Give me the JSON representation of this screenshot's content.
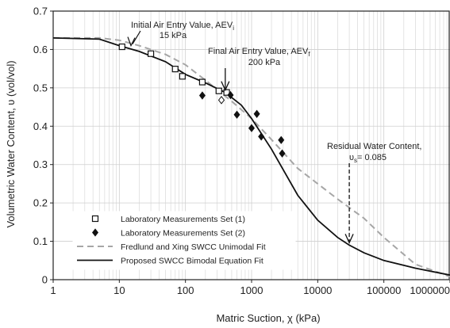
{
  "chart_data": {
    "type": "scatter",
    "xscale": "log",
    "xlim": [
      1,
      1000000
    ],
    "ylim": [
      0,
      0.7
    ],
    "grid": true,
    "xlabel": "Matric Suction, χ  (kPa)",
    "ylabel": "Volumetric Water Content, υ (vol/vol)",
    "x_tick_labels": [
      "1",
      "10",
      "100",
      "1000",
      "10000",
      "100000",
      "1000000"
    ],
    "y_tick_labels": [
      "0",
      "0.1",
      "0.2",
      "0.3",
      "0.4",
      "0.5",
      "0.6",
      "0.7"
    ],
    "legend_position": "bottom-left",
    "series": [
      {
        "name": "Laboratory Measurements Set (1)",
        "kind": "markers",
        "marker": "open-square",
        "points": [
          [
            11,
            0.607
          ],
          [
            30,
            0.589
          ],
          [
            70,
            0.549
          ],
          [
            90,
            0.53
          ],
          [
            180,
            0.515
          ],
          [
            320,
            0.492
          ],
          [
            420,
            0.488
          ]
        ]
      },
      {
        "name": "Laboratory Measurements Set (2)",
        "kind": "markers",
        "marker": "filled-diamond",
        "points": [
          [
            180,
            0.48
          ],
          [
            480,
            0.481
          ],
          [
            600,
            0.43
          ],
          [
            1000,
            0.395
          ],
          [
            1200,
            0.432
          ],
          [
            1400,
            0.373
          ],
          [
            2800,
            0.364
          ],
          [
            2900,
            0.329
          ]
        ]
      },
      {
        "name": "",
        "kind": "markers",
        "marker": "open-diamond",
        "points": [
          [
            350,
            0.468
          ]
        ]
      },
      {
        "name": "Fredlund and Xing SWCC Unimodal Fit",
        "kind": "line",
        "style": "dashed",
        "color": "#a6a6a6",
        "points": [
          [
            1,
            0.63
          ],
          [
            5,
            0.63
          ],
          [
            10,
            0.624
          ],
          [
            20,
            0.61
          ],
          [
            50,
            0.587
          ],
          [
            100,
            0.56
          ],
          [
            200,
            0.52
          ],
          [
            500,
            0.465
          ],
          [
            1000,
            0.42
          ],
          [
            2000,
            0.365
          ],
          [
            5000,
            0.29
          ],
          [
            10000,
            0.25
          ],
          [
            20000,
            0.21
          ],
          [
            50000,
            0.16
          ],
          [
            100000,
            0.11
          ],
          [
            300000,
            0.04
          ],
          [
            1000000,
            0.008
          ]
        ]
      },
      {
        "name": "Proposed SWCC Bimodal Equation Fit",
        "kind": "line",
        "style": "solid",
        "color": "#111111",
        "points": [
          [
            1,
            0.63
          ],
          [
            5,
            0.627
          ],
          [
            10,
            0.61
          ],
          [
            20,
            0.595
          ],
          [
            50,
            0.568
          ],
          [
            100,
            0.535
          ],
          [
            200,
            0.513
          ],
          [
            400,
            0.488
          ],
          [
            700,
            0.455
          ],
          [
            1000,
            0.42
          ],
          [
            2000,
            0.34
          ],
          [
            5000,
            0.22
          ],
          [
            10000,
            0.155
          ],
          [
            20000,
            0.11
          ],
          [
            30000,
            0.09
          ],
          [
            50000,
            0.07
          ],
          [
            100000,
            0.05
          ],
          [
            300000,
            0.03
          ],
          [
            1000000,
            0.012
          ]
        ]
      }
    ],
    "annotations": [
      {
        "lines": [
          "Initial Air Entry Value, AEV",
          "15 kPa"
        ],
        "subscript": "i",
        "arrow_x": 15,
        "arrow_y": 0.61
      },
      {
        "lines": [
          "Final Air Entry Value, AEV",
          "200 kPa"
        ],
        "subscript": "f",
        "arrow_x": 400,
        "arrow_y": 0.49
      },
      {
        "lines": [
          "Residual Water Content,",
          "υ"
        ],
        "subscript": "s",
        "value_text": "= 0.085",
        "arrow_x": 30000,
        "arrow_y": 0.09
      }
    ]
  }
}
